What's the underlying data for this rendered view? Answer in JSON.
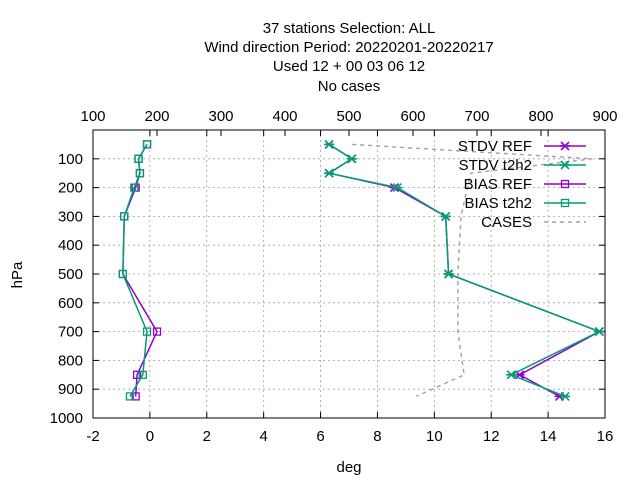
{
  "chart_data": {
    "type": "line",
    "title_lines": [
      "37 stations Selection: ALL",
      "Wind direction  Period: 20220201-20220217",
      "Used  12  + 00 03 06 12",
      "No cases"
    ],
    "xlabel": "deg",
    "ylabel": "hPa",
    "xlim": [
      -2,
      16
    ],
    "x_ticks": [
      "-2",
      "0",
      "2",
      "4",
      "6",
      "8",
      "10",
      "12",
      "14",
      "16"
    ],
    "ylim": [
      1000,
      0
    ],
    "y_ticks": [
      "100",
      "200",
      "300",
      "400",
      "500",
      "600",
      "700",
      "800",
      "900",
      "1000"
    ],
    "x2lim": [
      100,
      900
    ],
    "x2_ticks": [
      "100",
      "200",
      "300",
      "400",
      "500",
      "600",
      "700",
      "800",
      "900"
    ],
    "grid": true,
    "legend_position": "top-right",
    "series": [
      {
        "name": "STDV REF",
        "axis": "x",
        "color": "#9400d3",
        "marker": "star",
        "points": [
          [
            6.3,
            50
          ],
          [
            7.1,
            100
          ],
          [
            6.3,
            150
          ],
          [
            8.6,
            200
          ],
          [
            10.4,
            300
          ],
          [
            10.5,
            500
          ],
          [
            15.8,
            700
          ],
          [
            13.0,
            850
          ],
          [
            14.4,
            925
          ]
        ]
      },
      {
        "name": "STDV t2h2",
        "axis": "x",
        "color": "#009e73",
        "marker": "star",
        "points": [
          [
            6.3,
            50
          ],
          [
            7.1,
            100
          ],
          [
            6.3,
            150
          ],
          [
            8.7,
            200
          ],
          [
            10.4,
            300
          ],
          [
            10.5,
            500
          ],
          [
            15.8,
            700
          ],
          [
            12.7,
            850
          ],
          [
            14.6,
            925
          ]
        ]
      },
      {
        "name": "BIAS REF",
        "axis": "x",
        "color": "#9400d3",
        "marker": "square",
        "points": [
          [
            -0.1,
            50
          ],
          [
            -0.4,
            100
          ],
          [
            -0.35,
            150
          ],
          [
            -0.5,
            200
          ],
          [
            -0.9,
            300
          ],
          [
            -0.95,
            500
          ],
          [
            0.25,
            700
          ],
          [
            -0.45,
            850
          ],
          [
            -0.5,
            925
          ]
        ]
      },
      {
        "name": "BIAS t2h2",
        "axis": "x",
        "color": "#009e73",
        "marker": "square",
        "points": [
          [
            -0.1,
            50
          ],
          [
            -0.4,
            100
          ],
          [
            -0.35,
            150
          ],
          [
            -0.55,
            200
          ],
          [
            -0.9,
            300
          ],
          [
            -0.95,
            500
          ],
          [
            -0.1,
            700
          ],
          [
            -0.25,
            850
          ],
          [
            -0.7,
            925
          ]
        ]
      },
      {
        "name": "CASES",
        "axis": "x2",
        "color": "#a0a0a0",
        "marker": "none",
        "dashed": true,
        "points": [
          [
            505,
            50
          ],
          [
            880,
            100
          ],
          [
            690,
            150
          ],
          [
            675,
            300
          ],
          [
            670,
            500
          ],
          [
            670,
            700
          ],
          [
            680,
            850
          ],
          [
            605,
            925
          ]
        ]
      }
    ]
  }
}
